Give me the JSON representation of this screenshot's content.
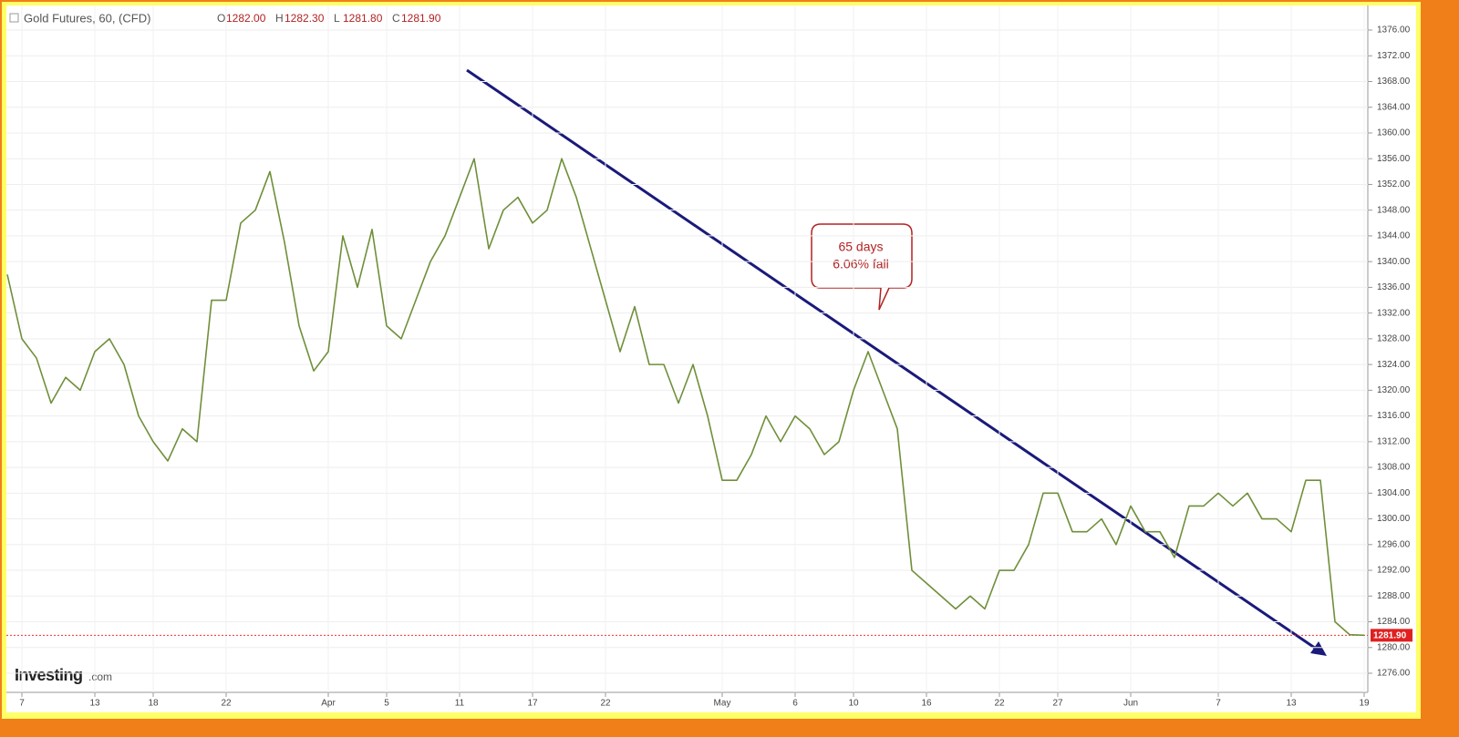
{
  "chart_data": {
    "type": "line",
    "title": "Gold Futures, 60, (CFD)",
    "ohlc": [
      {
        "name": "O",
        "value": 1282,
        "label": "1282.00"
      },
      {
        "name": "H",
        "value": 1282.3,
        "label": "1282.30"
      },
      {
        "name": "L",
        "value": 1281.8,
        "label": "1281.80"
      },
      {
        "name": "C",
        "value": 1281.9,
        "label": "1281.90"
      }
    ],
    "last_price": {
      "value": 1281.9,
      "label": "1281.90"
    },
    "annotations": [
      "65 days",
      "6.06% fall"
    ],
    "logo": {
      "brand": "Investing",
      "suffix": ".com"
    },
    "color": "#6f8f3a",
    "categories": [
      null,
      "7",
      null,
      null,
      null,
      null,
      "13",
      null,
      null,
      null,
      "18",
      null,
      null,
      null,
      null,
      "22",
      null,
      null,
      null,
      null,
      null,
      null,
      "Apr",
      null,
      null,
      null,
      "5",
      null,
      null,
      null,
      null,
      "11",
      null,
      null,
      null,
      null,
      "17",
      null,
      null,
      null,
      null,
      "22",
      null,
      null,
      null,
      null,
      null,
      null,
      null,
      "May",
      null,
      null,
      null,
      null,
      "6",
      null,
      null,
      null,
      "10",
      null,
      null,
      null,
      null,
      "16",
      null,
      null,
      null,
      null,
      "22",
      null,
      null,
      null,
      "27",
      null,
      null,
      null,
      null,
      "Jun",
      null,
      null,
      null,
      null,
      null,
      "7",
      null,
      null,
      null,
      null,
      "13",
      null,
      null,
      null,
      null,
      "19"
    ],
    "values": [
      1338,
      1328,
      1325,
      1318,
      1322,
      1320,
      1326,
      1328,
      1324,
      1316,
      1312,
      1309,
      1314,
      1312,
      1334,
      1334,
      1346,
      1348,
      1354,
      1343,
      1330,
      1323,
      1326,
      1344,
      1336,
      1345,
      1330,
      1328,
      1334,
      1340,
      1344,
      1350,
      1356,
      1342,
      1348,
      1350,
      1346,
      1348,
      1356,
      1350,
      1342,
      1334,
      1326,
      1333,
      1324,
      1324,
      1318,
      1324,
      1316,
      1306,
      1306,
      1310,
      1316,
      1312,
      1316,
      1314,
      1310,
      1312,
      1320,
      1326,
      1320,
      1314,
      1292,
      1290,
      1288,
      1286,
      1288,
      1286,
      1292,
      1292,
      1296,
      1304,
      1304,
      1298,
      1298,
      1300,
      1296,
      1302,
      1298,
      1298,
      1294,
      1302,
      1302,
      1304,
      1302,
      1304,
      1300,
      1300,
      1298,
      1306,
      1306,
      1284,
      1282,
      1281.9
    ],
    "ylim": [
      1274,
      1378
    ],
    "yticks": [
      {
        "value": 1276,
        "label": "1276.00"
      },
      {
        "value": 1280,
        "label": "1280.00"
      },
      {
        "value": 1284,
        "label": "1284.00"
      },
      {
        "value": 1288,
        "label": "1288.00"
      },
      {
        "value": 1292,
        "label": "1292.00"
      },
      {
        "value": 1296,
        "label": "1296.00"
      },
      {
        "value": 1300,
        "label": "1300.00"
      },
      {
        "value": 1304,
        "label": "1304.00"
      },
      {
        "value": 1308,
        "label": "1308.00"
      },
      {
        "value": 1312,
        "label": "1312.00"
      },
      {
        "value": 1316,
        "label": "1316.00"
      },
      {
        "value": 1320,
        "label": "1320.00"
      },
      {
        "value": 1324,
        "label": "1324.00"
      },
      {
        "value": 1328,
        "label": "1328.00"
      },
      {
        "value": 1332,
        "label": "1332.00"
      },
      {
        "value": 1336,
        "label": "1336.00"
      },
      {
        "value": 1340,
        "label": "1340.00"
      },
      {
        "value": 1344,
        "label": "1344.00"
      },
      {
        "value": 1348,
        "label": "1348.00"
      },
      {
        "value": 1352,
        "label": "1352.00"
      },
      {
        "value": 1356,
        "label": "1356.00"
      },
      {
        "value": 1360,
        "label": "1360.00"
      },
      {
        "value": 1364,
        "label": "1364.00"
      },
      {
        "value": 1368,
        "label": "1368.00"
      },
      {
        "value": 1372,
        "label": "1372.00"
      },
      {
        "value": 1376,
        "label": "1376.00"
      }
    ],
    "grid": true
  }
}
